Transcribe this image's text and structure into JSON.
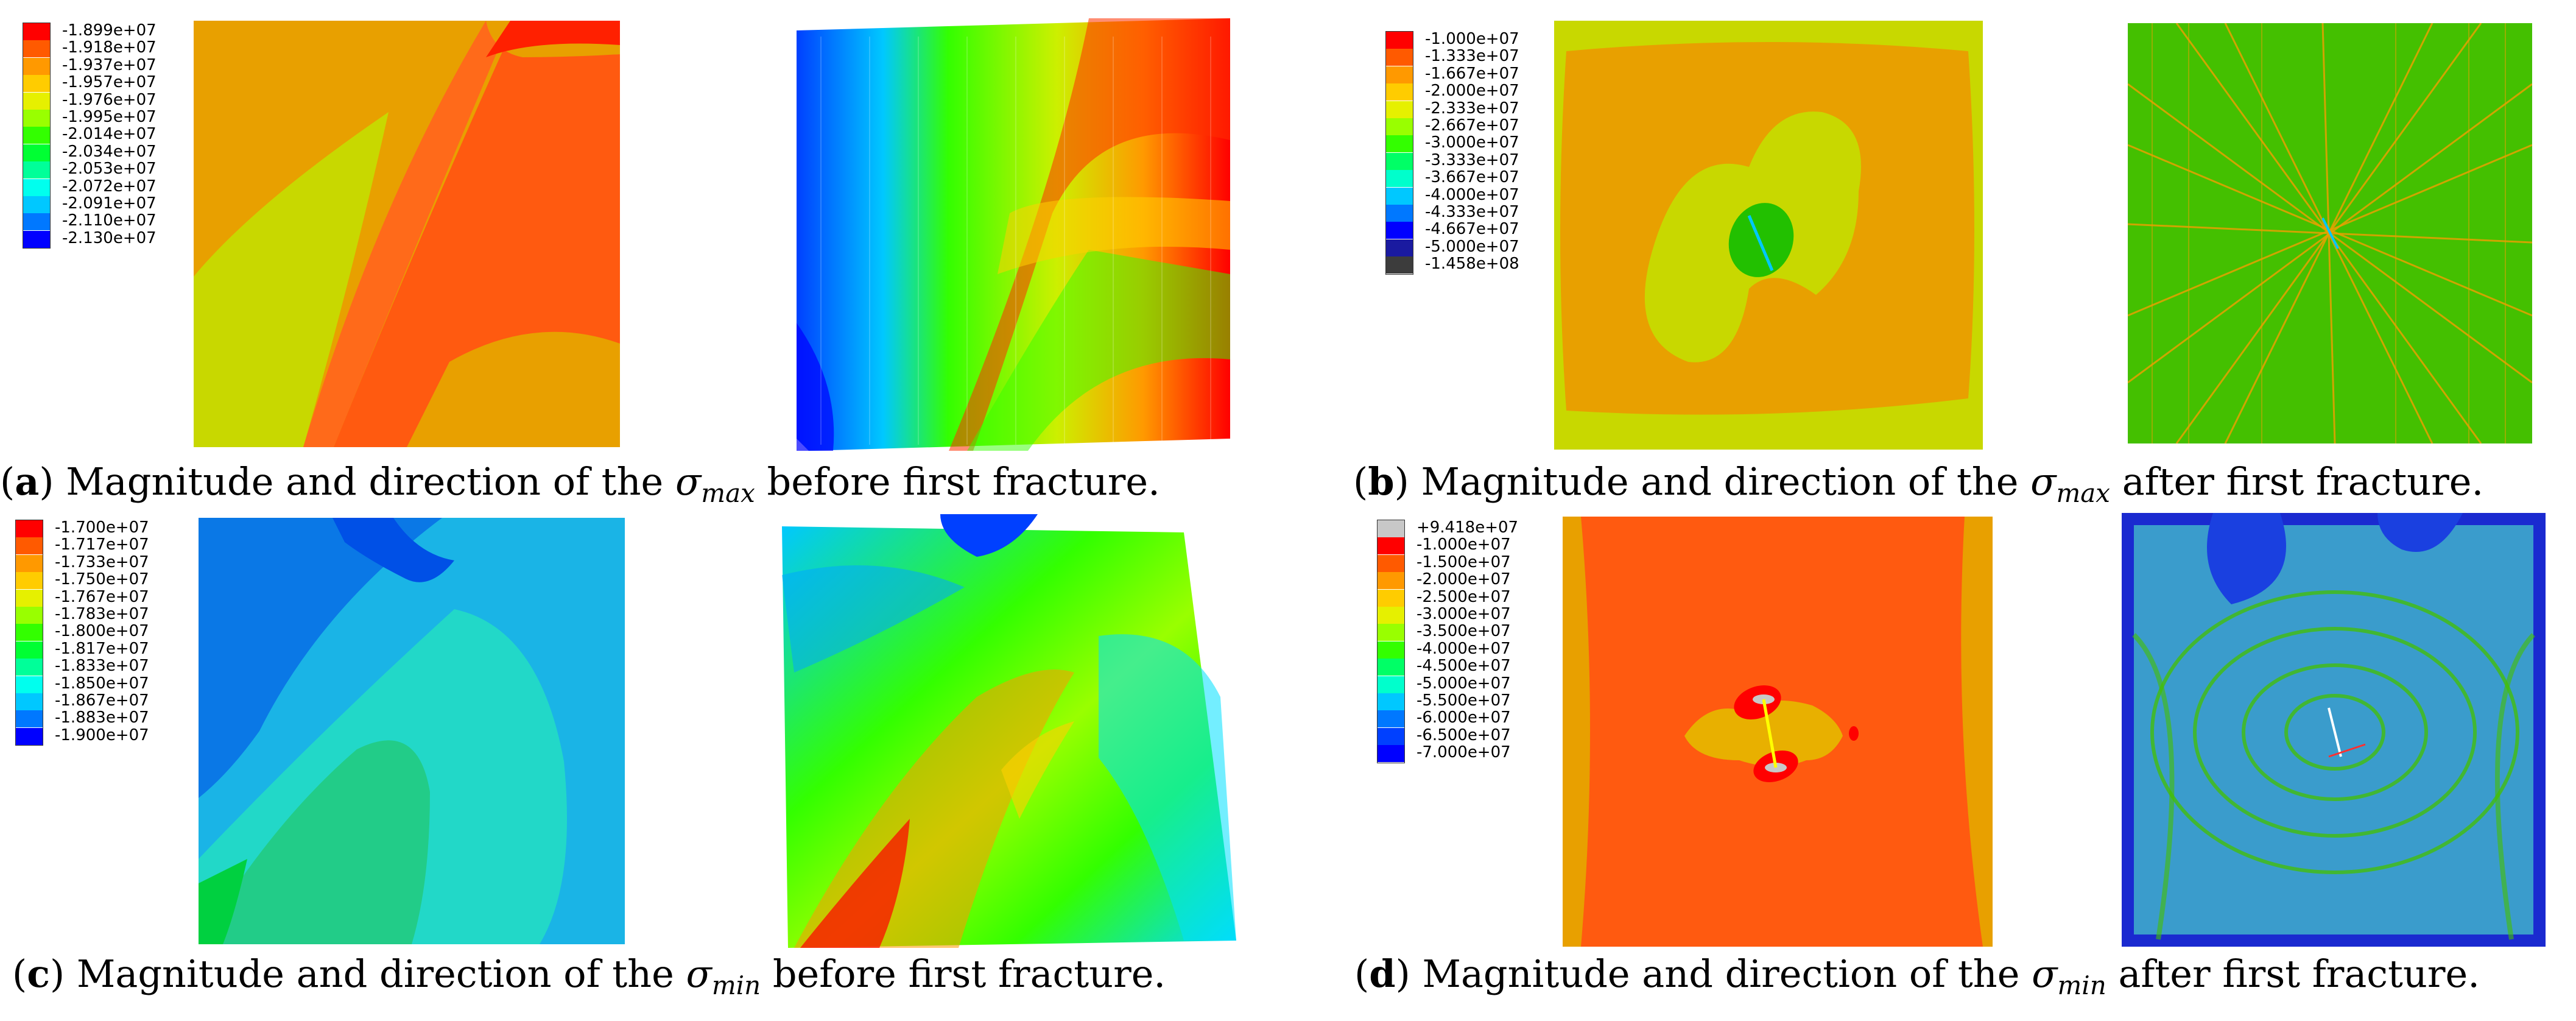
{
  "panels": [
    {
      "id": "a",
      "legend": {
        "values": [
          "-1.899e+07",
          "-1.918e+07",
          "-1.937e+07",
          "-1.957e+07",
          "-1.976e+07",
          "-1.995e+07",
          "-2.014e+07",
          "-2.034e+07",
          "-2.053e+07",
          "-2.072e+07",
          "-2.091e+07",
          "-2.110e+07",
          "-2.130e+07"
        ],
        "colors": [
          "#ff0000",
          "#ff5a00",
          "#ff9900",
          "#ffcc00",
          "#e6f000",
          "#99ff00",
          "#33ff00",
          "#00ff33",
          "#00ff99",
          "#00ffee",
          "#00c8ff",
          "#0078ff",
          "#0000ff"
        ]
      },
      "caption": {
        "letter": "a",
        "prefix": " Magnitude and direction of the ",
        "sym": "σ",
        "sub": "max",
        "suffix": " before first fracture."
      }
    },
    {
      "id": "b",
      "legend": {
        "values": [
          "-1.000e+07",
          "-1.333e+07",
          "-1.667e+07",
          "-2.000e+07",
          "-2.333e+07",
          "-2.667e+07",
          "-3.000e+07",
          "-3.333e+07",
          "-3.667e+07",
          "-4.000e+07",
          "-4.333e+07",
          "-4.667e+07",
          "-5.000e+07",
          "-1.458e+08"
        ],
        "colors": [
          "#ff0000",
          "#ff5a00",
          "#ff9900",
          "#ffcc00",
          "#e6f000",
          "#99ff00",
          "#33ff00",
          "#00ff66",
          "#00ffcc",
          "#00c8ff",
          "#0078ff",
          "#0000ff",
          "#1a1aa0",
          "#3c3c3c"
        ]
      },
      "caption": {
        "letter": "b",
        "prefix": " Magnitude and direction of the ",
        "sym": "σ",
        "sub": "max",
        "suffix": " after first fracture."
      }
    },
    {
      "id": "c",
      "legend": {
        "values": [
          "-1.700e+07",
          "-1.717e+07",
          "-1.733e+07",
          "-1.750e+07",
          "-1.767e+07",
          "-1.783e+07",
          "-1.800e+07",
          "-1.817e+07",
          "-1.833e+07",
          "-1.850e+07",
          "-1.867e+07",
          "-1.883e+07",
          "-1.900e+07"
        ],
        "colors": [
          "#ff0000",
          "#ff5a00",
          "#ff9900",
          "#ffcc00",
          "#e6f000",
          "#99ff00",
          "#33ff00",
          "#00ff33",
          "#00ff99",
          "#00ffee",
          "#00c8ff",
          "#0078ff",
          "#0000ff"
        ]
      },
      "caption": {
        "letter": "c",
        "prefix": " Magnitude and direction of the ",
        "sym": "σ",
        "sub": "min",
        "suffix": " before first fracture."
      }
    },
    {
      "id": "d",
      "legend": {
        "values": [
          "+9.418e+07",
          "-1.000e+07",
          "-1.500e+07",
          "-2.000e+07",
          "-2.500e+07",
          "-3.000e+07",
          "-3.500e+07",
          "-4.000e+07",
          "-4.500e+07",
          "-5.000e+07",
          "-5.500e+07",
          "-6.000e+07",
          "-6.500e+07",
          "-7.000e+07"
        ],
        "colors": [
          "#c8c8c8",
          "#ff0000",
          "#ff5a00",
          "#ff9900",
          "#ffcc00",
          "#e6f000",
          "#99ff00",
          "#33ff00",
          "#00ff66",
          "#00ffcc",
          "#00c8ff",
          "#0078ff",
          "#0040ff",
          "#0000ff"
        ]
      },
      "caption": {
        "letter": "d",
        "prefix": " Magnitude and direction of the ",
        "sym": "σ",
        "sub": "min",
        "suffix": " after first fracture."
      }
    }
  ]
}
